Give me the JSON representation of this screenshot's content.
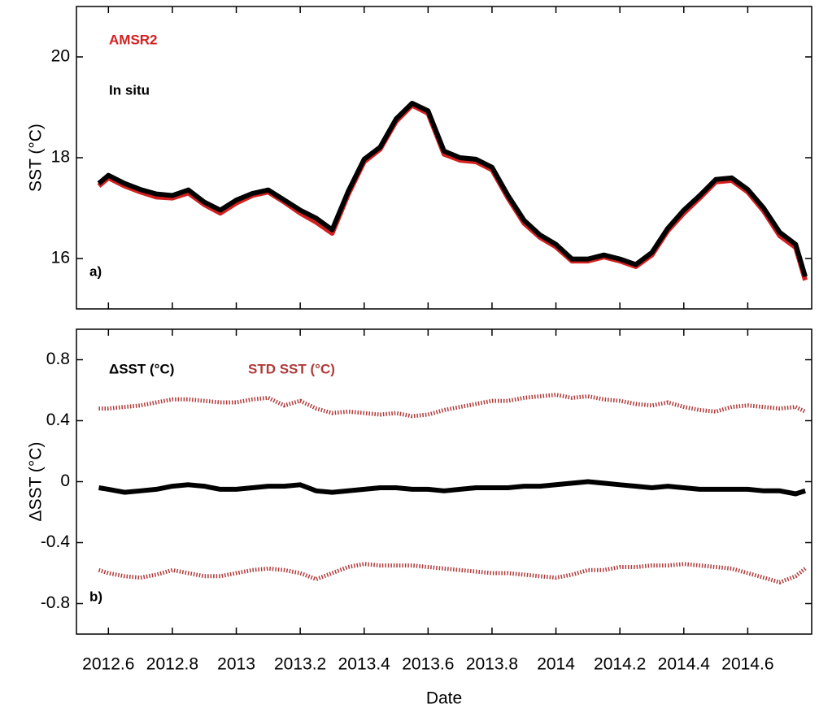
{
  "chart_data": [
    {
      "type": "line",
      "ylabel": "SST (°C)",
      "panel_label": "a)",
      "legend": "top-left",
      "xlim": [
        2012.5,
        2014.8
      ],
      "ylim": [
        15,
        21
      ],
      "yticks": [
        16,
        18,
        20
      ],
      "x": [
        2012.57,
        2012.6,
        2012.65,
        2012.7,
        2012.75,
        2012.8,
        2012.85,
        2012.9,
        2012.95,
        2013,
        2013.05,
        2013.1,
        2013.15,
        2013.2,
        2013.25,
        2013.3,
        2013.35,
        2013.4,
        2013.45,
        2013.5,
        2013.55,
        2013.6,
        2013.65,
        2013.7,
        2013.75,
        2013.8,
        2013.85,
        2013.9,
        2013.95,
        2014,
        2014.05,
        2014.1,
        2014.15,
        2014.2,
        2014.25,
        2014.3,
        2014.35,
        2014.4,
        2014.45,
        2014.5,
        2014.55,
        2014.6,
        2014.65,
        2014.7,
        2014.75,
        2014.78
      ],
      "series": [
        {
          "name": "AMSR2",
          "color": "#d42020",
          "values": [
            17.44,
            17.6,
            17.44,
            17.32,
            17.22,
            17.2,
            17.3,
            17.07,
            16.9,
            17.1,
            17.25,
            17.32,
            17.12,
            16.9,
            16.72,
            16.5,
            17.27,
            17.92,
            18.17,
            18.72,
            19.04,
            18.88,
            18.07,
            17.95,
            17.92,
            17.76,
            17.2,
            16.7,
            16.42,
            16.23,
            15.95,
            15.95,
            16.03,
            15.95,
            15.84,
            16.07,
            16.55,
            16.9,
            17.2,
            17.52,
            17.55,
            17.32,
            16.94,
            16.45,
            16.22,
            15.57
          ]
        },
        {
          "name": "In situ",
          "color": "#000000",
          "values": [
            17.49,
            17.65,
            17.49,
            17.37,
            17.28,
            17.25,
            17.36,
            17.12,
            16.96,
            17.16,
            17.29,
            17.36,
            17.16,
            16.96,
            16.8,
            16.57,
            17.33,
            17.97,
            18.21,
            18.77,
            19.08,
            18.93,
            18.13,
            18.0,
            17.97,
            17.81,
            17.25,
            16.76,
            16.47,
            16.28,
            15.99,
            15.99,
            16.07,
            15.99,
            15.88,
            16.12,
            16.6,
            16.96,
            17.25,
            17.57,
            17.6,
            17.37,
            17.0,
            16.52,
            16.28,
            15.64
          ]
        }
      ]
    },
    {
      "type": "line",
      "ylabel": "ΔSST (°C)",
      "xlabel": "Date",
      "panel_label": "b)",
      "legend": "top-left",
      "xlim": [
        2012.5,
        2014.8
      ],
      "ylim": [
        -1,
        1
      ],
      "yticks": [
        -0.8,
        -0.4,
        0,
        0.4,
        0.8
      ],
      "xticks": [
        2012.6,
        2012.8,
        2013,
        2013.2,
        2013.4,
        2013.6,
        2013.8,
        2014,
        2014.2,
        2014.4,
        2014.6
      ],
      "x": [
        2012.57,
        2012.6,
        2012.65,
        2012.7,
        2012.75,
        2012.8,
        2012.85,
        2012.9,
        2012.95,
        2013,
        2013.05,
        2013.1,
        2013.15,
        2013.2,
        2013.25,
        2013.3,
        2013.35,
        2013.4,
        2013.45,
        2013.5,
        2013.55,
        2013.6,
        2013.65,
        2013.7,
        2013.75,
        2013.8,
        2013.85,
        2013.9,
        2013.95,
        2014,
        2014.05,
        2014.1,
        2014.15,
        2014.2,
        2014.25,
        2014.3,
        2014.35,
        2014.4,
        2014.45,
        2014.5,
        2014.55,
        2014.6,
        2014.65,
        2014.7,
        2014.75,
        2014.78
      ],
      "series": [
        {
          "name": "ΔSST (°C)",
          "color": "#000000",
          "values": [
            -0.04,
            -0.05,
            -0.07,
            -0.06,
            -0.05,
            -0.03,
            -0.02,
            -0.03,
            -0.05,
            -0.05,
            -0.04,
            -0.03,
            -0.03,
            -0.02,
            -0.06,
            -0.07,
            -0.06,
            -0.05,
            -0.04,
            -0.04,
            -0.05,
            -0.05,
            -0.06,
            -0.05,
            -0.04,
            -0.04,
            -0.04,
            -0.03,
            -0.03,
            -0.02,
            -0.01,
            0.0,
            -0.01,
            -0.02,
            -0.03,
            -0.04,
            -0.03,
            -0.04,
            -0.05,
            -0.05,
            -0.05,
            -0.05,
            -0.06,
            -0.06,
            -0.08,
            -0.06
          ]
        },
        {
          "name": "STD SST (°C)",
          "color": "#b03a3a",
          "dotted": true,
          "values": [
            0.48,
            0.48,
            0.49,
            0.5,
            0.52,
            0.54,
            0.54,
            0.53,
            0.52,
            0.52,
            0.54,
            0.55,
            0.5,
            0.53,
            0.48,
            0.45,
            0.46,
            0.45,
            0.44,
            0.45,
            0.43,
            0.44,
            0.47,
            0.49,
            0.51,
            0.53,
            0.53,
            0.55,
            0.56,
            0.57,
            0.55,
            0.56,
            0.54,
            0.53,
            0.51,
            0.5,
            0.52,
            0.49,
            0.47,
            0.46,
            0.49,
            0.5,
            0.49,
            0.48,
            0.49,
            0.46
          ],
          "values_lower": [
            -0.58,
            -0.6,
            -0.62,
            -0.63,
            -0.61,
            -0.58,
            -0.6,
            -0.62,
            -0.62,
            -0.6,
            -0.58,
            -0.57,
            -0.58,
            -0.6,
            -0.64,
            -0.6,
            -0.56,
            -0.54,
            -0.55,
            -0.55,
            -0.55,
            -0.56,
            -0.57,
            -0.58,
            -0.59,
            -0.6,
            -0.6,
            -0.61,
            -0.62,
            -0.63,
            -0.61,
            -0.58,
            -0.58,
            -0.56,
            -0.56,
            -0.55,
            -0.55,
            -0.54,
            -0.55,
            -0.56,
            -0.57,
            -0.6,
            -0.63,
            -0.66,
            -0.62,
            -0.57
          ]
        }
      ]
    }
  ]
}
